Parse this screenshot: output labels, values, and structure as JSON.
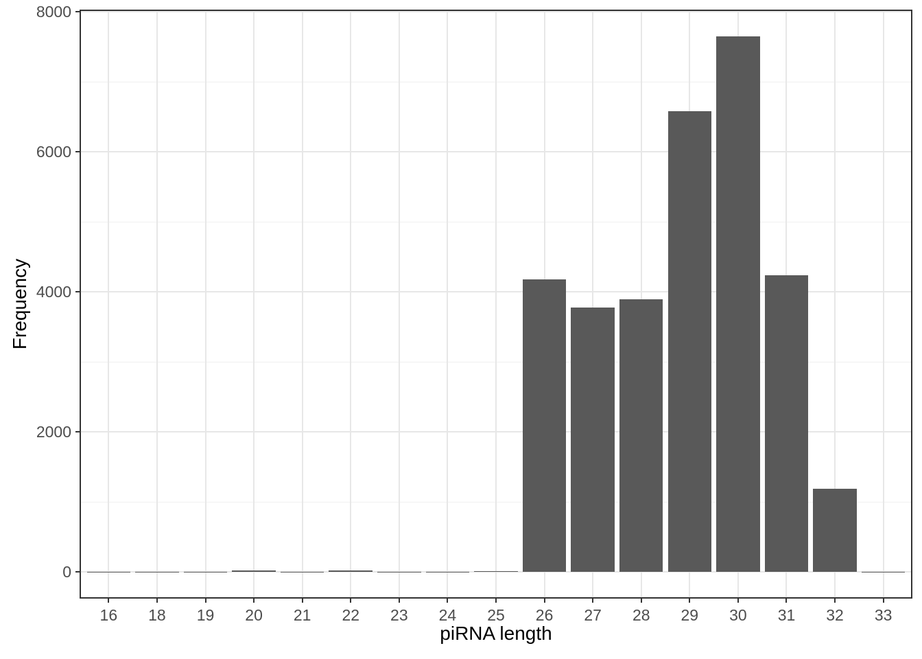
{
  "chart_data": {
    "type": "bar",
    "subtype": "histogram",
    "title": "",
    "xlabel": "piRNA length",
    "ylabel": "Frequency",
    "categories": [
      "16",
      "18",
      "19",
      "20",
      "21",
      "22",
      "23",
      "24",
      "25",
      "26",
      "27",
      "28",
      "29",
      "30",
      "31",
      "32",
      "33"
    ],
    "values": [
      2,
      2,
      2,
      20,
      2,
      15,
      2,
      2,
      10,
      4180,
      3780,
      3890,
      6580,
      7650,
      4240,
      1190,
      2
    ],
    "y_major_ticks": [
      0,
      2000,
      4000,
      6000,
      8000
    ],
    "y_minor_ticks": [
      1000,
      3000,
      5000,
      7000
    ],
    "ylim": [
      0,
      8000
    ],
    "grid": "on",
    "legend": "none",
    "bar_width_fraction": 0.9,
    "colors": {
      "bar_fill": "#595959",
      "panel_border": "#333333",
      "grid_major": "#e7e7e7",
      "grid_minor": "#f0f0f0",
      "tick_mark": "#333333",
      "tick_label": "#4d4d4d",
      "axis_title": "#000000",
      "background": "#ffffff"
    }
  }
}
